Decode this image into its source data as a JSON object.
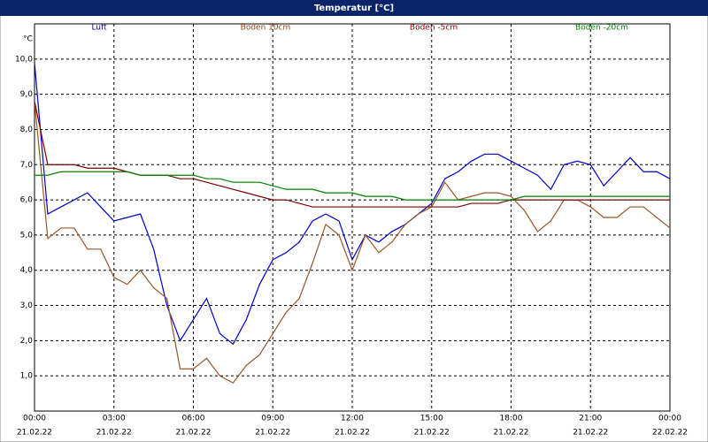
{
  "chart_data": {
    "type": "line",
    "title": "Temperatur [°C]",
    "y_unit": "°C",
    "x": [
      0,
      0.5,
      1,
      1.5,
      2,
      2.5,
      3,
      3.5,
      4,
      4.5,
      5,
      5.5,
      6,
      6.5,
      7,
      7.5,
      8,
      8.5,
      9,
      9.5,
      10,
      10.5,
      11,
      11.5,
      12,
      12.5,
      13,
      13.5,
      14,
      14.5,
      15,
      15.5,
      16,
      16.5,
      17,
      17.5,
      18,
      18.5,
      19,
      19.5,
      20,
      20.5,
      21,
      21.5,
      22,
      22.5,
      23,
      23.5,
      24
    ],
    "series": [
      {
        "name": "Luft",
        "color": "#0000cc",
        "label_color": "#000080",
        "values": [
          9.9,
          5.6,
          5.8,
          6.0,
          6.2,
          5.8,
          5.4,
          5.5,
          5.6,
          4.6,
          3.0,
          2.0,
          2.6,
          3.2,
          2.2,
          1.9,
          2.6,
          3.6,
          4.3,
          4.5,
          4.8,
          5.4,
          5.6,
          5.4,
          4.3,
          5.0,
          4.8,
          5.1,
          5.3,
          5.6,
          5.9,
          6.6,
          6.8,
          7.1,
          7.3,
          7.3,
          7.1,
          6.9,
          6.7,
          6.3,
          7.0,
          7.1,
          7.0,
          6.4,
          6.8,
          7.2,
          6.8,
          6.8,
          6.6
        ]
      },
      {
        "name": "Boden 10cm",
        "color": "#99562a",
        "label_color": "#8b4513",
        "values": [
          8.8,
          4.9,
          5.2,
          5.2,
          4.6,
          4.6,
          3.8,
          3.6,
          4.0,
          3.5,
          3.2,
          1.2,
          1.2,
          1.5,
          1.0,
          0.8,
          1.3,
          1.6,
          2.2,
          2.8,
          3.2,
          4.2,
          5.3,
          5.0,
          4.0,
          5.0,
          4.5,
          4.8,
          5.3,
          5.6,
          5.8,
          6.5,
          6.0,
          6.1,
          6.2,
          6.2,
          6.1,
          5.7,
          5.1,
          5.4,
          6.0,
          6.0,
          5.8,
          5.5,
          5.5,
          5.8,
          5.8,
          5.5,
          5.2
        ]
      },
      {
        "name": "Boden -5cm",
        "color": "#800000",
        "label_color": "#800000",
        "values": [
          8.8,
          7.0,
          7.0,
          7.0,
          6.9,
          6.9,
          6.9,
          6.8,
          6.7,
          6.7,
          6.7,
          6.6,
          6.6,
          6.5,
          6.4,
          6.3,
          6.2,
          6.1,
          6.0,
          6.0,
          5.9,
          5.8,
          5.8,
          5.8,
          5.8,
          5.8,
          5.8,
          5.8,
          5.8,
          5.8,
          5.8,
          5.8,
          5.8,
          5.9,
          5.9,
          5.9,
          6.0,
          6.0,
          6.0,
          6.0,
          6.0,
          6.0,
          6.0,
          6.0,
          6.0,
          6.0,
          6.0,
          6.0,
          6.0
        ]
      },
      {
        "name": "Boden -20cm",
        "color": "#008000",
        "label_color": "#008000",
        "values": [
          6.7,
          6.7,
          6.8,
          6.8,
          6.8,
          6.8,
          6.8,
          6.8,
          6.7,
          6.7,
          6.7,
          6.7,
          6.7,
          6.6,
          6.6,
          6.5,
          6.5,
          6.5,
          6.4,
          6.3,
          6.3,
          6.3,
          6.2,
          6.2,
          6.2,
          6.1,
          6.1,
          6.1,
          6.0,
          6.0,
          6.0,
          6.0,
          6.0,
          6.0,
          6.0,
          6.0,
          6.0,
          6.1,
          6.1,
          6.1,
          6.1,
          6.1,
          6.1,
          6.1,
          6.1,
          6.1,
          6.1,
          6.1,
          6.1
        ]
      }
    ],
    "xlim": [
      0,
      24
    ],
    "xticks": [
      {
        "value": 0,
        "label": "00:00"
      },
      {
        "value": 3,
        "label": "03:00"
      },
      {
        "value": 6,
        "label": "06:00"
      },
      {
        "value": 9,
        "label": "09:00"
      },
      {
        "value": 12,
        "label": "12:00"
      },
      {
        "value": 15,
        "label": "15:00"
      },
      {
        "value": 18,
        "label": "18:00"
      },
      {
        "value": 21,
        "label": "21:00"
      },
      {
        "value": 24,
        "label": "00:00"
      }
    ],
    "xtick_dates": [
      "21.02.22",
      "21.02.22",
      "21.02.22",
      "21.02.22",
      "21.02.22",
      "21.02.22",
      "21.02.22",
      "21.02.22",
      "22.02.22"
    ],
    "ylim": [
      0,
      11
    ],
    "yticks": [
      {
        "value": 1,
        "label": "1,0"
      },
      {
        "value": 2,
        "label": "2,0"
      },
      {
        "value": 3,
        "label": "3,0"
      },
      {
        "value": 4,
        "label": "4,0"
      },
      {
        "value": 5,
        "label": "5,0"
      },
      {
        "value": 6,
        "label": "6,0"
      },
      {
        "value": 7,
        "label": "7,0"
      },
      {
        "value": 8,
        "label": "8,0"
      },
      {
        "value": 9,
        "label": "9,0"
      },
      {
        "value": 10,
        "label": "10,0"
      }
    ],
    "grid": true
  }
}
